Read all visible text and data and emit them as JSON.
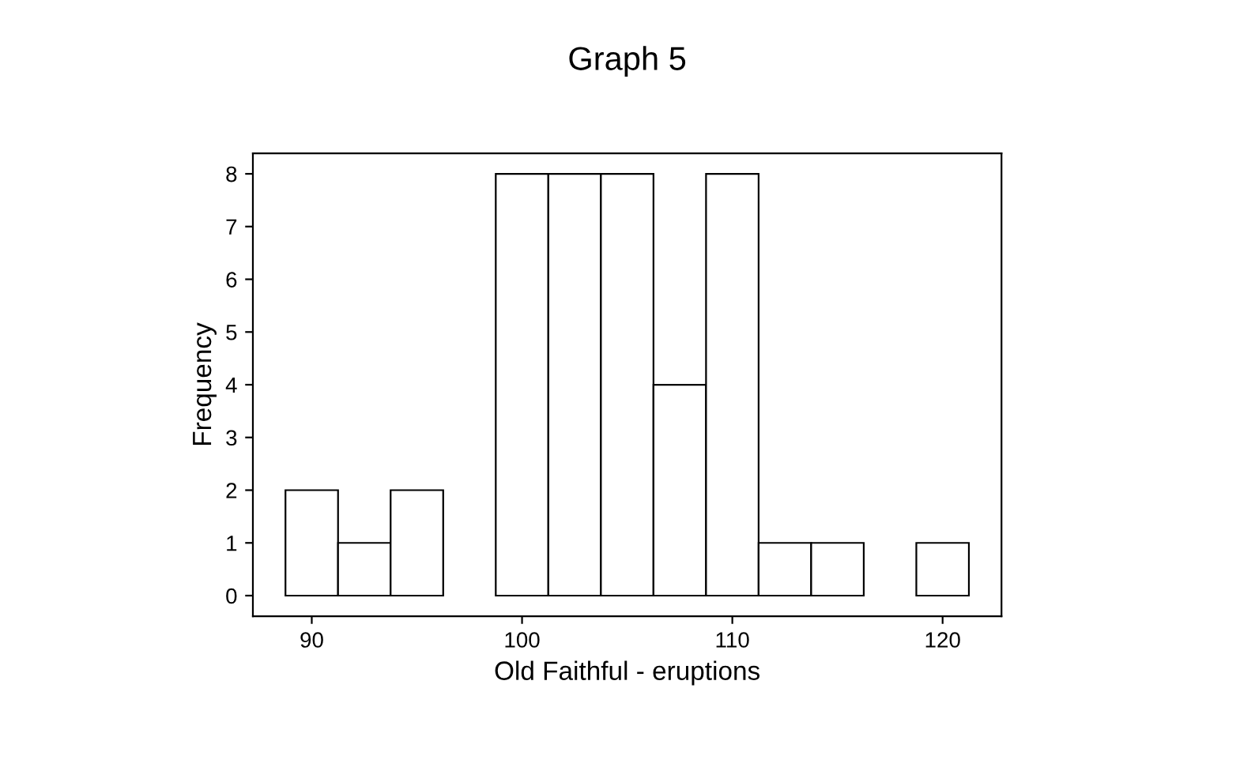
{
  "chart_data": {
    "type": "histogram",
    "title": "Graph 5",
    "xlabel": "Old Faithful - eruptions",
    "ylabel": "Frequency",
    "bins": [
      88.75,
      91.25,
      93.75,
      96.25,
      98.75,
      101.25,
      103.75,
      106.25,
      108.75,
      111.25,
      113.75,
      116.25,
      118.75,
      121.25
    ],
    "values": [
      2,
      1,
      2,
      0,
      8,
      8,
      8,
      4,
      8,
      1,
      1,
      0,
      1
    ],
    "color": "#ffffff",
    "xlim": [
      87.2,
      122.8
    ],
    "xticks": [
      90,
      100,
      110,
      120
    ],
    "ylim": [
      -0.39,
      8.39
    ],
    "yticks": [
      0,
      1,
      2,
      3,
      4,
      5,
      6,
      7,
      8
    ],
    "grid": false
  }
}
